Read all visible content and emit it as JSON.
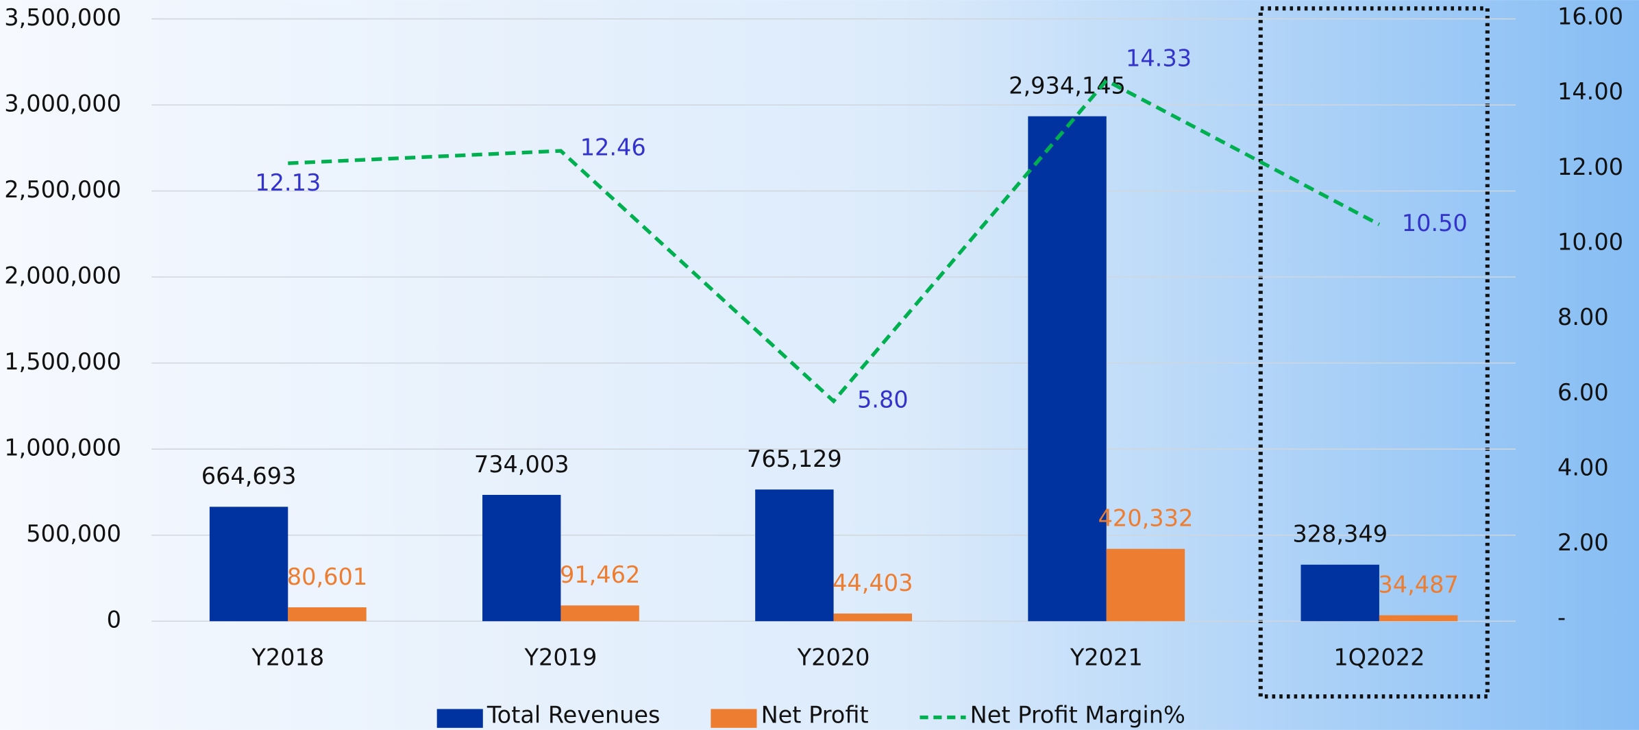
{
  "chart_data": {
    "type": "bar",
    "categories": [
      "Y2018",
      "Y2019",
      "Y2020",
      "Y2021",
      "1Q2022"
    ],
    "series": [
      {
        "name": "Total Revenues",
        "color": "#0033a0",
        "values": [
          664693,
          734003,
          765129,
          2934145,
          328349
        ],
        "value_labels": [
          "664,693",
          "734,003",
          "765,129",
          "2,934,145",
          "328,349"
        ]
      },
      {
        "name": "Net Profit",
        "color": "#ed7d31",
        "values": [
          80601,
          91462,
          44403,
          420332,
          34487
        ],
        "value_labels": [
          "80,601",
          "91,462",
          "44,403",
          "420,332",
          "34,487"
        ]
      },
      {
        "name": "Net Profit Margin%",
        "type": "line",
        "axis": "y2",
        "color": "#00b050",
        "values": [
          12.13,
          12.46,
          5.8,
          14.33,
          10.5
        ],
        "value_labels": [
          "12.13",
          "12.46",
          "5.80",
          "14.33",
          "10.50"
        ]
      }
    ],
    "ylim": [
      0,
      3500000
    ],
    "yticks": [
      0,
      {
        "value": 500000,
        "label": "500,000"
      },
      {
        "value": 1000000,
        "label": "1,000,000"
      },
      {
        "value": 1500000,
        "label": "1,500,000"
      },
      {
        "value": 2000000,
        "label": "2,000,000"
      },
      {
        "value": 2500000,
        "label": "2,500,000"
      },
      {
        "value": 3000000,
        "label": "3,000,000"
      },
      {
        "value": 3500000,
        "label": "3,500,000"
      }
    ],
    "y2lim": [
      0,
      16
    ],
    "y2ticks": [
      {
        "value": 0,
        "label": "-"
      },
      {
        "value": 2,
        "label": "2.00"
      },
      {
        "value": 4,
        "label": "4.00"
      },
      {
        "value": 6,
        "label": "6.00"
      },
      {
        "value": 8,
        "label": "8.00"
      },
      {
        "value": 10,
        "label": "10.00"
      },
      {
        "value": 12,
        "label": "12.00"
      },
      {
        "value": 14,
        "label": "14.00"
      },
      {
        "value": 16,
        "label": "16.00"
      }
    ],
    "grid": true,
    "legend": "bottom"
  }
}
